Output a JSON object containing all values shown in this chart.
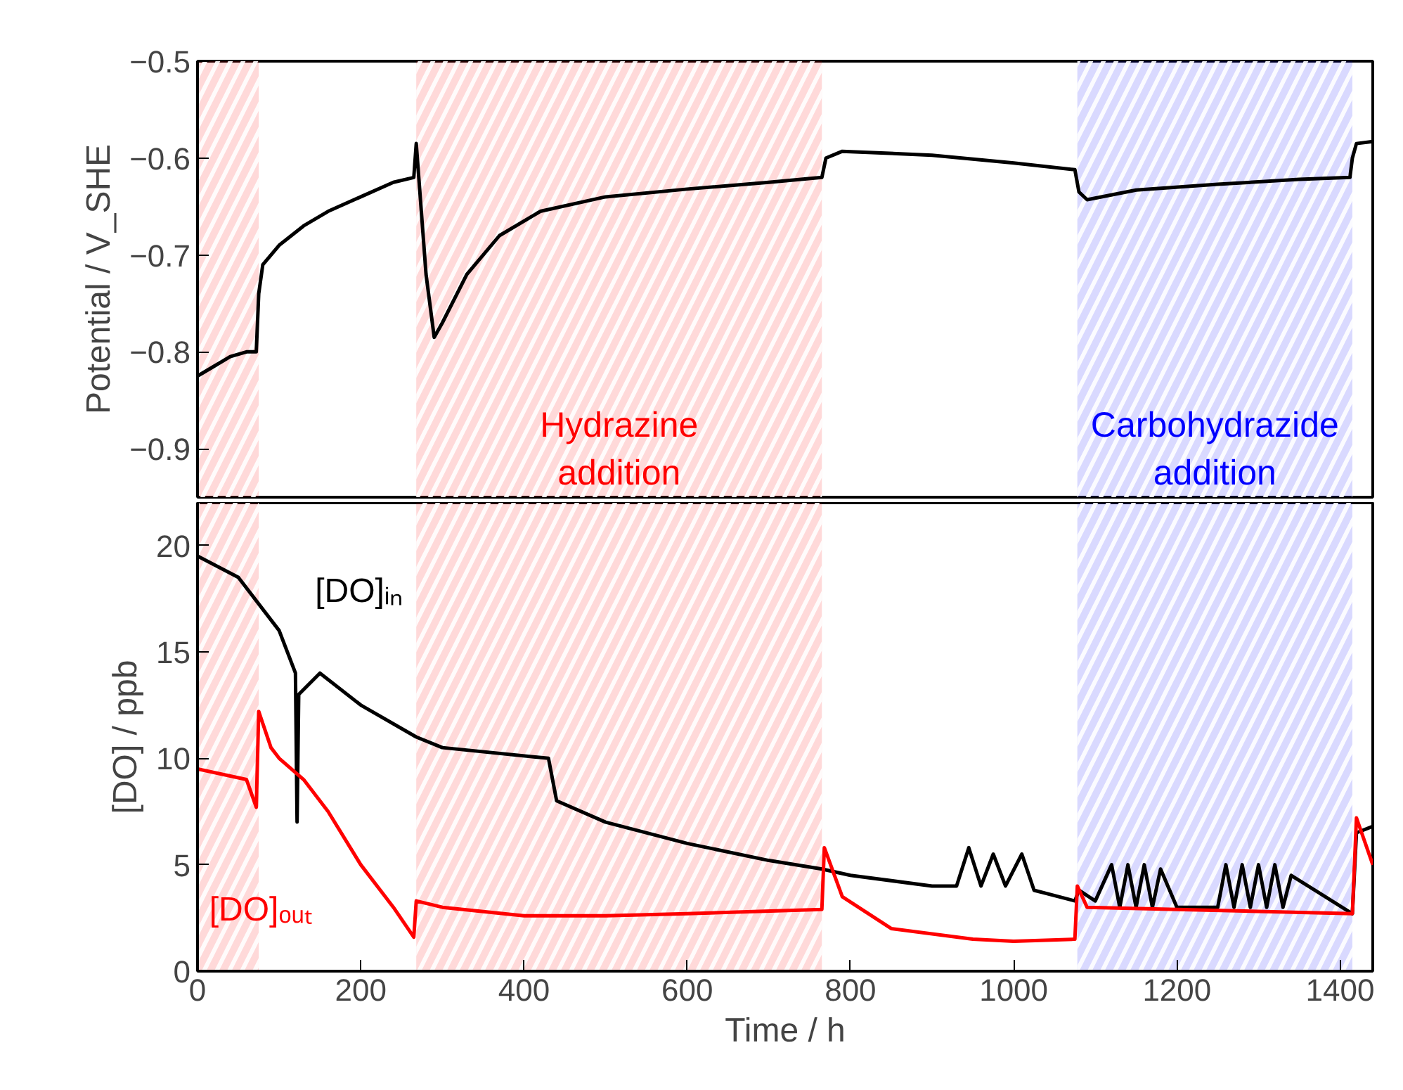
{
  "chart_data": [
    {
      "type": "line",
      "ylabel": "Potential / V_SHE",
      "xlim": [
        0,
        1440
      ],
      "ylim": [
        -0.95,
        -0.5
      ],
      "yticks": [
        -0.5,
        -0.6,
        -0.7,
        -0.8,
        -0.9
      ],
      "tick_labels": "y",
      "grid": false,
      "bands": [
        {
          "axis": "x",
          "from": 0,
          "to": 75,
          "color": "#ff0000"
        },
        {
          "axis": "x",
          "from": 268,
          "to": 765,
          "label": "Hydrazine addition",
          "color": "#ff0000"
        },
        {
          "axis": "x",
          "from": 1078,
          "to": 1415,
          "label": "Carbohydrazide addition",
          "color": "#0000ff"
        }
      ],
      "series": [
        {
          "color": "#000000",
          "x": [
            0,
            20,
            40,
            60,
            72,
            75,
            80,
            100,
            130,
            160,
            200,
            240,
            265,
            268,
            272,
            280,
            290,
            300,
            330,
            370,
            420,
            500,
            600,
            700,
            765,
            770,
            790,
            900,
            1000,
            1075,
            1080,
            1090,
            1150,
            1250,
            1350,
            1412,
            1415,
            1420,
            1440
          ],
          "values": [
            -0.825,
            -0.815,
            -0.805,
            -0.8,
            -0.8,
            -0.74,
            -0.71,
            -0.69,
            -0.67,
            -0.655,
            -0.64,
            -0.625,
            -0.62,
            -0.585,
            -0.63,
            -0.72,
            -0.785,
            -0.77,
            -0.72,
            -0.68,
            -0.655,
            -0.64,
            -0.632,
            -0.625,
            -0.62,
            -0.6,
            -0.593,
            -0.597,
            -0.605,
            -0.612,
            -0.635,
            -0.643,
            -0.633,
            -0.627,
            -0.622,
            -0.62,
            -0.6,
            -0.585,
            -0.583
          ]
        }
      ]
    },
    {
      "type": "line",
      "xlabel": "Time / h",
      "ylabel": "[DO] / ppb",
      "xlim": [
        0,
        1440
      ],
      "ylim": [
        0,
        22
      ],
      "xticks": [
        0,
        200,
        400,
        600,
        800,
        1000,
        1200,
        1400
      ],
      "yticks": [
        0,
        5,
        10,
        15,
        20
      ],
      "grid": false,
      "bands": [
        {
          "axis": "x",
          "from": 0,
          "to": 75,
          "color": "#ff0000"
        },
        {
          "axis": "x",
          "from": 268,
          "to": 765,
          "color": "#ff0000"
        },
        {
          "axis": "x",
          "from": 1078,
          "to": 1415,
          "color": "#0000ff"
        }
      ],
      "series": [
        {
          "name": "[DO]ᵢₙ",
          "color": "#000000",
          "x": [
            0,
            50,
            100,
            120,
            122,
            124,
            150,
            200,
            268,
            300,
            430,
            440,
            500,
            600,
            700,
            765,
            800,
            900,
            930,
            945,
            960,
            975,
            990,
            1010,
            1025,
            1075,
            1080,
            1100,
            1120,
            1130,
            1140,
            1150,
            1160,
            1170,
            1180,
            1200,
            1250,
            1260,
            1270,
            1280,
            1290,
            1300,
            1310,
            1320,
            1330,
            1340,
            1415,
            1420,
            1440
          ],
          "values": [
            19.5,
            18.5,
            16,
            14,
            7,
            13,
            14,
            12.5,
            11,
            10.5,
            10,
            8,
            7,
            6,
            5.2,
            4.8,
            4.5,
            4,
            4,
            5.8,
            4,
            5.5,
            4,
            5.5,
            3.8,
            3.3,
            3.8,
            3.3,
            5,
            3,
            5,
            3,
            5,
            3,
            4.8,
            3,
            3,
            5,
            3,
            5,
            3,
            5,
            3,
            5,
            3,
            4.5,
            2.7,
            6.5,
            6.8
          ]
        },
        {
          "name": "[DO]ₒᵤₜ",
          "color": "#ff0000",
          "x": [
            0,
            60,
            72,
            75,
            90,
            100,
            130,
            160,
            200,
            240,
            265,
            268,
            300,
            400,
            500,
            600,
            765,
            768,
            790,
            850,
            950,
            1000,
            1075,
            1078,
            1090,
            1415,
            1420,
            1440
          ],
          "values": [
            9.5,
            9,
            7.7,
            12.2,
            10.5,
            10,
            9,
            7.5,
            5,
            3,
            1.6,
            3.3,
            3,
            2.6,
            2.6,
            2.7,
            2.9,
            5.8,
            3.5,
            2,
            1.5,
            1.4,
            1.5,
            4,
            3,
            2.7,
            7.2,
            5
          ]
        }
      ]
    }
  ]
}
